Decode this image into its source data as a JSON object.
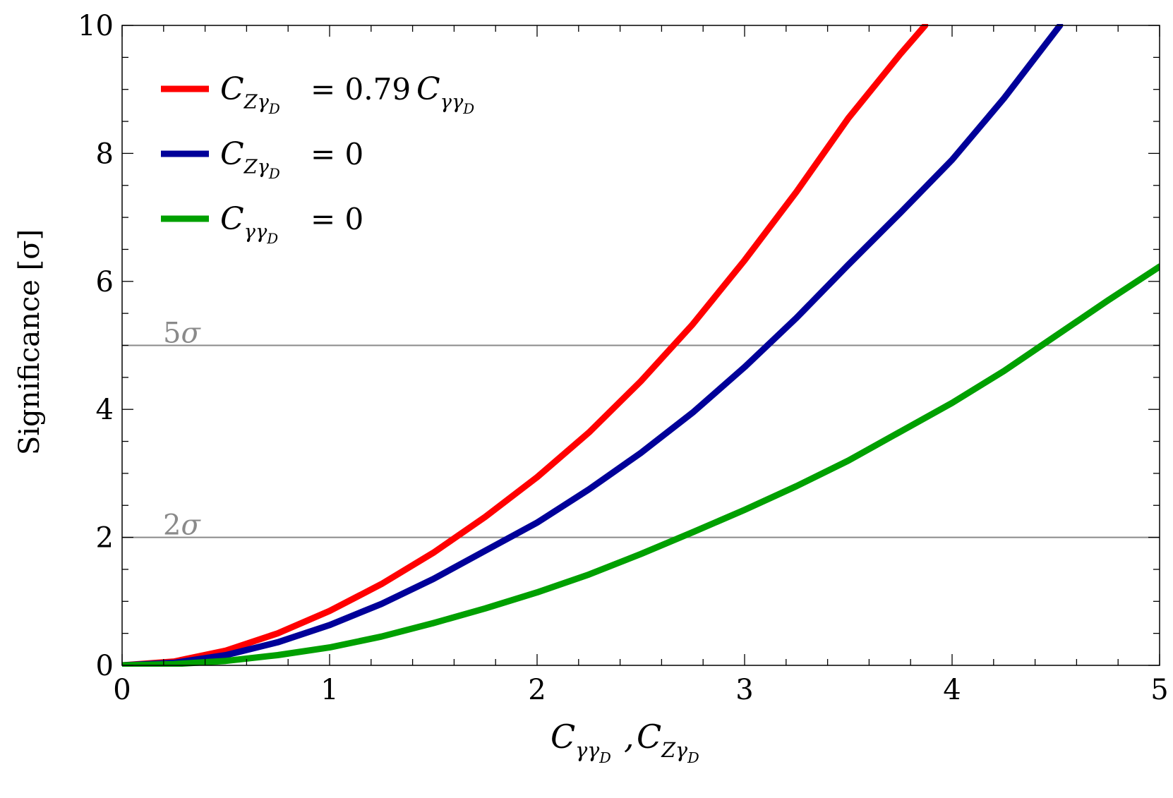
{
  "chart_data": {
    "type": "line",
    "title": "",
    "xlabel": {
      "main": "C",
      "parts": [
        {
          "sym": "C",
          "sub": "γγ",
          "subsub": "D"
        },
        {
          "sym": "C",
          "sub": "Zγ",
          "subsub": "D"
        }
      ]
    },
    "ylabel": "Significance [σ]",
    "xlim": [
      0,
      5
    ],
    "ylim": [
      0,
      10
    ],
    "x_ticks": [
      "0",
      "1",
      "2",
      "3",
      "4",
      "5"
    ],
    "y_ticks": [
      "0",
      "2",
      "4",
      "6",
      "8",
      "10"
    ],
    "grid": false,
    "legend_position": "top-left",
    "reference_lines": [
      {
        "y": 5,
        "label": "5σ",
        "color": "#8a8a8a"
      },
      {
        "y": 2,
        "label": "2σ",
        "color": "#8a8a8a"
      }
    ],
    "series": [
      {
        "name": "C_{Zγ_D} = 0.79 C_{γγ_D}",
        "legend": {
          "lhs_sym": "C",
          "lhs_sub": "Zγ",
          "lhs_subsub": "D",
          "rhs": "= 0.79",
          "rhs_sym": "C",
          "rhs_sub": "γγ",
          "rhs_subsub": "D"
        },
        "color": "#ff0000",
        "x": [
          0,
          0.25,
          0.5,
          0.75,
          1.0,
          1.25,
          1.5,
          1.75,
          2.0,
          2.25,
          2.5,
          2.75,
          3.0,
          3.25,
          3.5,
          3.75,
          3.87
        ],
        "values": [
          0.0,
          0.06,
          0.23,
          0.5,
          0.85,
          1.27,
          1.76,
          2.32,
          2.94,
          3.64,
          4.44,
          5.33,
          6.33,
          7.4,
          8.55,
          9.55,
          10.0
        ]
      },
      {
        "name": "C_{Zγ_D} = 0",
        "legend": {
          "lhs_sym": "C",
          "lhs_sub": "Zγ",
          "lhs_subsub": "D",
          "rhs": "= 0",
          "rhs_sym": "",
          "rhs_sub": "",
          "rhs_subsub": ""
        },
        "color": "#000099",
        "x": [
          0,
          0.25,
          0.5,
          0.75,
          1.0,
          1.25,
          1.5,
          1.75,
          2.0,
          2.25,
          2.5,
          2.75,
          3.0,
          3.25,
          3.5,
          3.75,
          4.0,
          4.25,
          4.52
        ],
        "values": [
          0.0,
          0.04,
          0.16,
          0.36,
          0.63,
          0.96,
          1.35,
          1.79,
          2.23,
          2.75,
          3.32,
          3.95,
          4.66,
          5.43,
          6.26,
          7.07,
          7.9,
          8.86,
          10.0
        ]
      },
      {
        "name": "C_{γγ_D} = 0",
        "legend": {
          "lhs_sym": "C",
          "lhs_sub": "γγ",
          "lhs_subsub": "D",
          "rhs": "= 0",
          "rhs_sym": "",
          "rhs_sub": "",
          "rhs_subsub": ""
        },
        "color": "#00a000",
        "x": [
          0,
          0.25,
          0.5,
          0.75,
          1.0,
          1.25,
          1.5,
          1.75,
          2.0,
          2.25,
          2.5,
          2.75,
          3.0,
          3.25,
          3.5,
          3.75,
          4.0,
          4.25,
          4.5,
          4.75,
          5.0
        ],
        "values": [
          0.0,
          0.02,
          0.07,
          0.16,
          0.28,
          0.45,
          0.66,
          0.89,
          1.14,
          1.42,
          1.74,
          2.08,
          2.43,
          2.8,
          3.2,
          3.65,
          4.1,
          4.6,
          5.15,
          5.7,
          6.23
        ]
      }
    ]
  }
}
